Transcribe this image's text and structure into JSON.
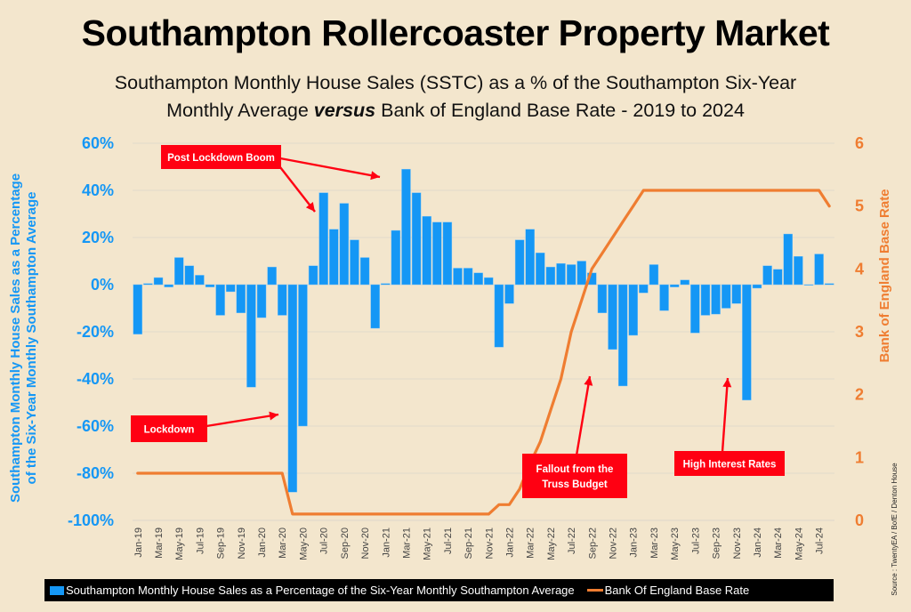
{
  "title": "Southampton Rollercoaster Property Market",
  "subtitle_line1": "Southampton Monthly House Sales (SSTC) as a % of the Southampton Six-Year",
  "subtitle_line2_pre": "Monthly Average ",
  "subtitle_line2_em": "versus",
  "subtitle_line2_post": " Bank of England Base Rate - 2019 to 2024",
  "source": "Source : TwentyEA / BofE / Denton House",
  "legend": {
    "bars_label": "Southampton Monthly House Sales as a Percentage of the Six-Year Monthly Southampton Average",
    "line_label": "Bank Of England Base Rate"
  },
  "colors": {
    "bars": "#1597f5",
    "line": "#ef7d31",
    "annotation": "#ff0012",
    "background": "#f3e6cd"
  },
  "annotations": [
    {
      "id": "post-lockdown-boom",
      "lines": [
        "Post Lockdown Boom"
      ]
    },
    {
      "id": "lockdown",
      "lines": [
        "Lockdown"
      ]
    },
    {
      "id": "truss-budget",
      "lines": [
        "Fallout from the",
        "Truss Budget"
      ]
    },
    {
      "id": "high-interest",
      "lines": [
        "High Interest Rates"
      ]
    }
  ],
  "chart_data": {
    "type": "bar+line",
    "title": "Southampton Rollercoaster Property Market",
    "ylabel": "Southampton Monthly House Sales as a Percentage of the Six-Year Monthly Southampton Average",
    "y2label": "Bank of England Base Rate",
    "ylim": [
      -100,
      60
    ],
    "yticks": [
      60,
      40,
      20,
      0,
      -20,
      -40,
      -60,
      -80,
      -100
    ],
    "ytick_labels": [
      "60%",
      "40%",
      "20%",
      "0%",
      "-20%",
      "-40%",
      "-60%",
      "-80%",
      "-100%"
    ],
    "y2lim": [
      0,
      6
    ],
    "y2ticks": [
      0,
      1,
      2,
      3,
      4,
      5,
      6
    ],
    "grid": true,
    "legend_position": "bottom",
    "categories": [
      "Jan-19",
      "Feb-19",
      "Mar-19",
      "Apr-19",
      "May-19",
      "Jun-19",
      "Jul-19",
      "Aug-19",
      "Sep-19",
      "Oct-19",
      "Nov-19",
      "Dec-19",
      "Jan-20",
      "Feb-20",
      "Mar-20",
      "Apr-20",
      "May-20",
      "Jun-20",
      "Jul-20",
      "Aug-20",
      "Sep-20",
      "Oct-20",
      "Nov-20",
      "Dec-20",
      "Jan-21",
      "Feb-21",
      "Mar-21",
      "Apr-21",
      "May-21",
      "Jun-21",
      "Jul-21",
      "Aug-21",
      "Sep-21",
      "Oct-21",
      "Nov-21",
      "Dec-21",
      "Jan-22",
      "Feb-22",
      "Mar-22",
      "Apr-22",
      "May-22",
      "Jun-22",
      "Jul-22",
      "Aug-22",
      "Sep-22",
      "Oct-22",
      "Nov-22",
      "Dec-22",
      "Jan-23",
      "Feb-23",
      "Mar-23",
      "Apr-23",
      "May-23",
      "Jun-23",
      "Jul-23",
      "Aug-23",
      "Sep-23",
      "Oct-23",
      "Nov-23",
      "Dec-23",
      "Jan-24",
      "Feb-24",
      "Mar-24",
      "Apr-24",
      "May-24",
      "Jun-24",
      "Jul-24",
      "Aug-24"
    ],
    "xtick_labels_every": 2,
    "series": [
      {
        "name": "Southampton Monthly House Sales as a Percentage of the Six-Year Monthly Southampton Average",
        "type": "bar",
        "axis": "left",
        "values": [
          -21,
          0.5,
          3,
          -1,
          11.5,
          8,
          4,
          -1,
          -13,
          -3,
          -12,
          -43.5,
          -14,
          7.5,
          -13,
          -88,
          -60,
          8,
          39,
          23.5,
          34.5,
          19,
          11.5,
          -18.5,
          0.5,
          23,
          49,
          39,
          29,
          26.5,
          26.5,
          7,
          7,
          5,
          3,
          -26.5,
          -8,
          19,
          23.5,
          13.5,
          7.5,
          9,
          8.5,
          10,
          5,
          -12,
          -27.5,
          -43,
          -21.5,
          -3.5,
          8.5,
          -11,
          -1,
          2,
          -20.5,
          -13,
          -12.5,
          -10,
          -8,
          -49,
          -1.5,
          8,
          6.5,
          21.5,
          12,
          0,
          13,
          0.5
        ]
      },
      {
        "name": "Bank Of England Base Rate",
        "type": "line",
        "axis": "right",
        "values": [
          0.75,
          0.75,
          0.75,
          0.75,
          0.75,
          0.75,
          0.75,
          0.75,
          0.75,
          0.75,
          0.75,
          0.75,
          0.75,
          0.75,
          0.75,
          0.1,
          0.1,
          0.1,
          0.1,
          0.1,
          0.1,
          0.1,
          0.1,
          0.1,
          0.1,
          0.1,
          0.1,
          0.1,
          0.1,
          0.1,
          0.1,
          0.1,
          0.1,
          0.1,
          0.1,
          0.25,
          0.25,
          0.5,
          0.9,
          1.25,
          1.75,
          2.25,
          3.0,
          3.5,
          4.0,
          4.25,
          4.5,
          4.75,
          5.0,
          5.25,
          5.25,
          5.25,
          5.25,
          5.25,
          5.25,
          5.25,
          5.25,
          5.25,
          5.25,
          5.25,
          5.25,
          5.25,
          5.25,
          5.25,
          5.25,
          5.25,
          5.25,
          5.0
        ]
      }
    ]
  }
}
